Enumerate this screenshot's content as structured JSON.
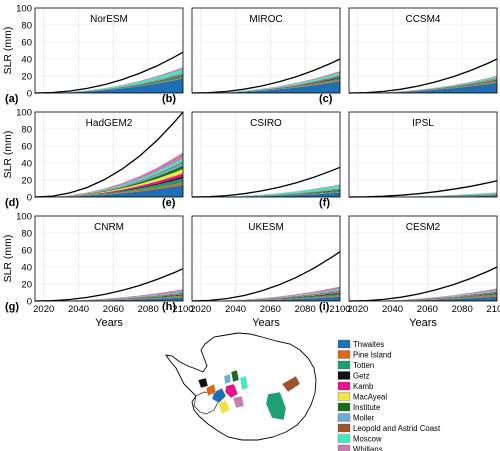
{
  "chart_data": {
    "type": "area",
    "stacked": true,
    "x": [
      2015,
      2025,
      2035,
      2045,
      2055,
      2065,
      2075,
      2085,
      2095,
      2100
    ],
    "xlim": [
      2015,
      2100
    ],
    "xticks": [
      2020,
      2040,
      2060,
      2080,
      2100
    ],
    "ylim": [
      0,
      100
    ],
    "yticks": [
      0,
      20,
      40,
      60,
      80,
      100
    ],
    "ylabel": "SLR (mm)",
    "xlabel": "Years",
    "grid": true,
    "glaciers": [
      {
        "name": "Thwaites",
        "color": "#1f6fb5"
      },
      {
        "name": "Pine Island",
        "color": "#d96a1a"
      },
      {
        "name": "Totten",
        "color": "#1e9e73"
      },
      {
        "name": "Getz",
        "color": "#111111"
      },
      {
        "name": "Kamb",
        "color": "#e3148c"
      },
      {
        "name": "MacAyeal",
        "color": "#f0e442"
      },
      {
        "name": "Institute",
        "color": "#1b6b1f"
      },
      {
        "name": "Moller",
        "color": "#6aaed6"
      },
      {
        "name": "Leopold and Astrid Coast",
        "color": "#a0522d"
      },
      {
        "name": "Moscow",
        "color": "#3ee8c0"
      },
      {
        "name": "Whillans",
        "color": "#c77db0"
      }
    ],
    "panels": [
      {
        "model": "NorESM",
        "letter": "(a)",
        "total": 48,
        "layers": [
          17,
          0.8,
          2.5,
          0.6,
          0.8,
          0.3,
          0.8,
          0.6,
          0.5,
          4.5,
          2
        ]
      },
      {
        "model": "MIROC",
        "letter": "(b)",
        "total": 40,
        "layers": [
          14,
          1.5,
          2,
          0.8,
          0.8,
          0.3,
          0.8,
          0.6,
          0.5,
          2.5,
          2
        ]
      },
      {
        "model": "CCSM4",
        "letter": "(c)",
        "total": 40,
        "layers": [
          12,
          1.5,
          1.5,
          0.5,
          0.5,
          0.3,
          0.6,
          0.5,
          0.4,
          1.5,
          1
        ]
      },
      {
        "model": "HadGEM2",
        "letter": "(d)",
        "total": 100,
        "layers": [
          14,
          3,
          5,
          2,
          4,
          5,
          4,
          3,
          1.5,
          4,
          7
        ]
      },
      {
        "model": "CSIRO",
        "letter": "(e)",
        "total": 35,
        "layers": [
          5,
          0.8,
          2,
          0.5,
          0.5,
          0.3,
          0.5,
          0.4,
          0.3,
          3.5,
          1
        ]
      },
      {
        "model": "IPSL",
        "letter": "(f)",
        "total": 19,
        "layers": [
          1.5,
          0.3,
          1,
          0.2,
          0.2,
          0.1,
          0.2,
          0.2,
          0.2,
          1,
          0.5
        ]
      },
      {
        "model": "CNRM",
        "letter": "(g)",
        "total": 38,
        "layers": [
          4,
          1.5,
          1.5,
          0.6,
          0.6,
          0.3,
          0.8,
          0.6,
          0.4,
          1,
          2.5
        ]
      },
      {
        "model": "UKESM",
        "letter": "(h)",
        "total": 58,
        "layers": [
          5,
          1.5,
          2,
          0.8,
          1,
          0.5,
          1,
          0.8,
          0.5,
          1.2,
          2.7
        ]
      },
      {
        "model": "CESM2",
        "letter": "(i)",
        "total": 40,
        "layers": [
          5,
          2,
          1.5,
          0.6,
          0.6,
          0.3,
          0.8,
          0.6,
          0.4,
          0.8,
          2.2
        ]
      }
    ]
  }
}
